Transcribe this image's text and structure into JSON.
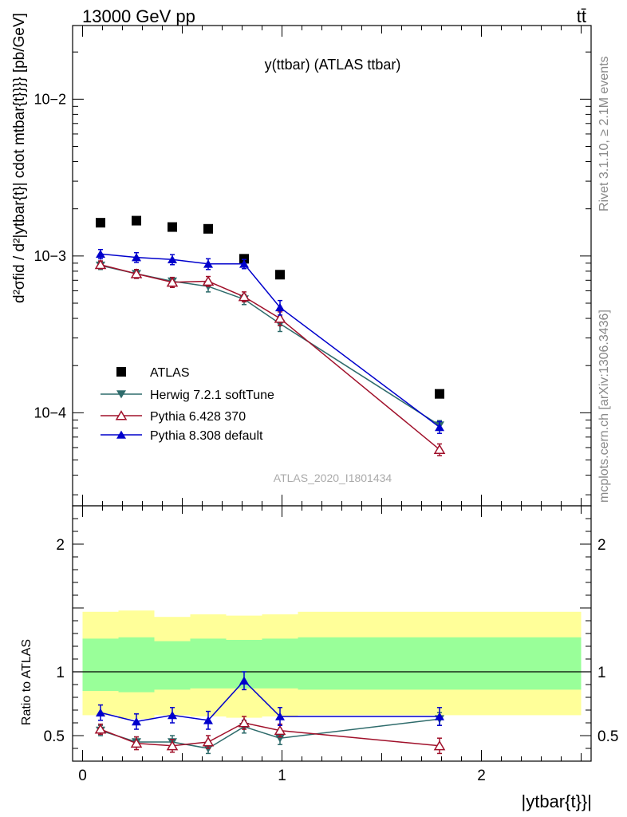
{
  "header": {
    "energy_label": "13000 GeV pp",
    "process_label": "tt̄"
  },
  "side": {
    "rivet_label": "Rivet 3.1.10, ≥ 2.1M events",
    "site_label": "mcplots.cern.ch [arXiv:1306.3436]"
  },
  "colors": {
    "atlas": "#000000",
    "herwig": "#2e6b6b",
    "pythia6": "#a0102a",
    "pythia8": "#0000cc",
    "band_outer": "#ffff99",
    "band_inner": "#99ff99"
  },
  "chart_data": [
    {
      "type": "scatter",
      "title": "y(ttbar) (ATLAS ttbar)",
      "watermark": "ATLAS_2020_I1801434",
      "ylabel": "d²σfid / d²|ytbar{t}| cdot mtbar{t}}}} [pb/GeV]",
      "y_scale": "log",
      "xlim": [
        -0.05,
        2.55
      ],
      "ylim": [
        2.55e-05,
        0.0295
      ],
      "y_tick_labels": [
        "10−4",
        "10−3",
        "10−2"
      ],
      "legend_position": "lower-left",
      "x": [
        0.09,
        0.27,
        0.45,
        0.63,
        0.81,
        0.99,
        1.79
      ],
      "series": [
        {
          "name": "ATLAS",
          "marker": "square",
          "values": [
            0.00163,
            0.00168,
            0.00153,
            0.00149,
            0.00096,
            0.00076,
            0.000132
          ],
          "errors": [
            0,
            0,
            0,
            0,
            0,
            0,
            0
          ]
        },
        {
          "name": "Herwig 7.2.1 softTune",
          "marker": "triangle-down",
          "values": [
            0.00087,
            0.00077,
            0.00069,
            0.00064,
            0.00053,
            0.00037,
            8.32e-05
          ],
          "errors": [
            5e-05,
            5e-05,
            4e-05,
            5e-05,
            4e-05,
            4e-05,
            6e-06
          ]
        },
        {
          "name": "Pythia 6.428 370",
          "marker": "triangle-open",
          "values": [
            0.00088,
            0.00077,
            0.00068,
            0.00069,
            0.00055,
            0.0004,
            5.83e-05
          ],
          "errors": [
            5e-05,
            5e-05,
            5e-05,
            5e-05,
            4e-05,
            4e-05,
            5e-06
          ]
        },
        {
          "name": "Pythia 8.308 default",
          "marker": "triangle-up",
          "values": [
            0.00103,
            0.00098,
            0.00095,
            0.00089,
            0.00089,
            0.00047,
            8.09e-05
          ],
          "errors": [
            7e-05,
            7e-05,
            7e-05,
            7e-05,
            6e-05,
            5e-05,
            7e-06
          ]
        }
      ]
    },
    {
      "type": "scatter",
      "title": "",
      "ylabel": "Ratio to ATLAS",
      "xlabel": "|ytbar{t}}|",
      "xlim": [
        -0.05,
        2.55
      ],
      "ylim": [
        0.3,
        2.3
      ],
      "x_ticks": [
        0,
        1,
        2
      ],
      "x_tick_labels": [
        "0",
        "1",
        "2"
      ],
      "y_ticks": [
        0.5,
        1,
        2
      ],
      "y_tick_labels": [
        "0.5",
        "1",
        "2"
      ],
      "reference_line": 1,
      "bands": {
        "edges": [
          0.0,
          0.18,
          0.36,
          0.54,
          0.72,
          0.9,
          1.08,
          2.5
        ],
        "outer_low": [
          0.66,
          0.63,
          0.66,
          0.65,
          0.64,
          0.65,
          0.66
        ],
        "outer_high": [
          1.47,
          1.48,
          1.43,
          1.45,
          1.44,
          1.45,
          1.47
        ],
        "inner_low": [
          0.85,
          0.84,
          0.86,
          0.87,
          0.87,
          0.87,
          0.86
        ],
        "inner_high": [
          1.26,
          1.27,
          1.24,
          1.26,
          1.25,
          1.26,
          1.27
        ]
      },
      "x": [
        0.09,
        0.27,
        0.45,
        0.63,
        0.81,
        0.99,
        1.79
      ],
      "series": [
        {
          "name": "Herwig 7.2.1 softTune",
          "marker": "triangle-down",
          "values": [
            0.54,
            0.45,
            0.45,
            0.4,
            0.57,
            0.48,
            0.63
          ],
          "errors": [
            0.04,
            0.04,
            0.05,
            0.04,
            0.05,
            0.05,
            0.05
          ]
        },
        {
          "name": "Pythia 6.428 370",
          "marker": "triangle-open",
          "values": [
            0.55,
            0.44,
            0.42,
            0.45,
            0.6,
            0.54,
            0.42
          ],
          "errors": [
            0.04,
            0.05,
            0.05,
            0.05,
            0.05,
            0.05,
            0.06
          ]
        },
        {
          "name": "Pythia 8.308 default",
          "marker": "triangle-up",
          "values": [
            0.68,
            0.61,
            0.66,
            0.62,
            0.93,
            0.65,
            0.65
          ],
          "errors": [
            0.06,
            0.06,
            0.06,
            0.07,
            0.07,
            0.07,
            0.07
          ]
        }
      ]
    }
  ]
}
